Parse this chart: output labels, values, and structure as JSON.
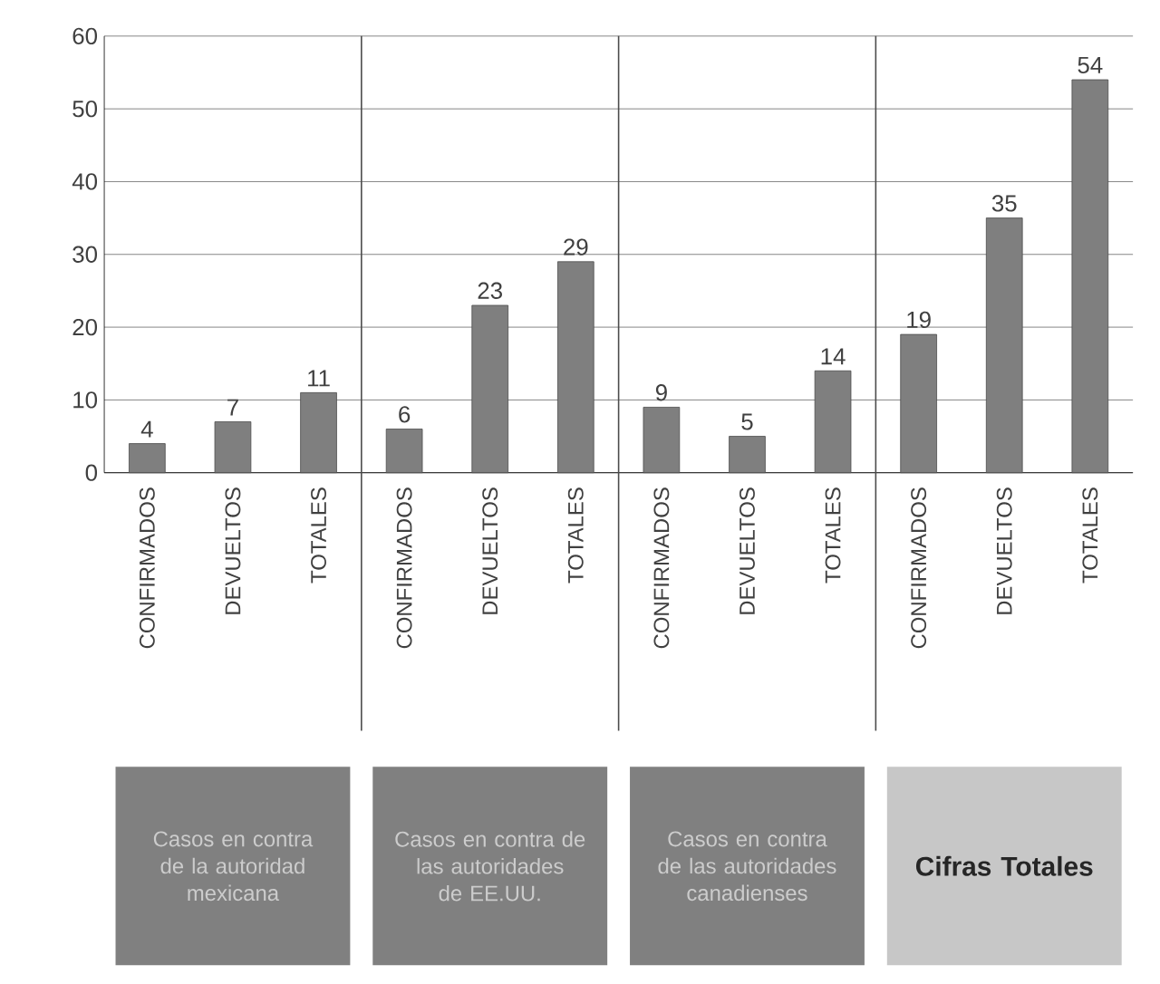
{
  "chart_data": {
    "type": "bar",
    "categories": [
      "CONFIRMADOS",
      "DEVUELTOS",
      "TOTALES",
      "CONFIRMADOS",
      "DEVUELTOS",
      "TOTALES",
      "CONFIRMADOS",
      "DEVUELTOS",
      "TOTALES",
      "CONFIRMADOS",
      "DEVUELTOS",
      "TOTALES"
    ],
    "values": [
      4,
      7,
      11,
      6,
      23,
      29,
      9,
      5,
      14,
      19,
      35,
      54
    ],
    "color": "#7f7f7f",
    "data_labels": true,
    "grid": "y",
    "ylim": [
      0,
      60
    ],
    "yticks": [
      0,
      10,
      20,
      30,
      40,
      50,
      60
    ],
    "annotations": [
      "Casos en contra de la autoridad mexicana",
      "Casos en contra de las autoridades de EE.UU.",
      "Casos en contra de las autoridades canadienses",
      "Cifras Totales"
    ]
  }
}
